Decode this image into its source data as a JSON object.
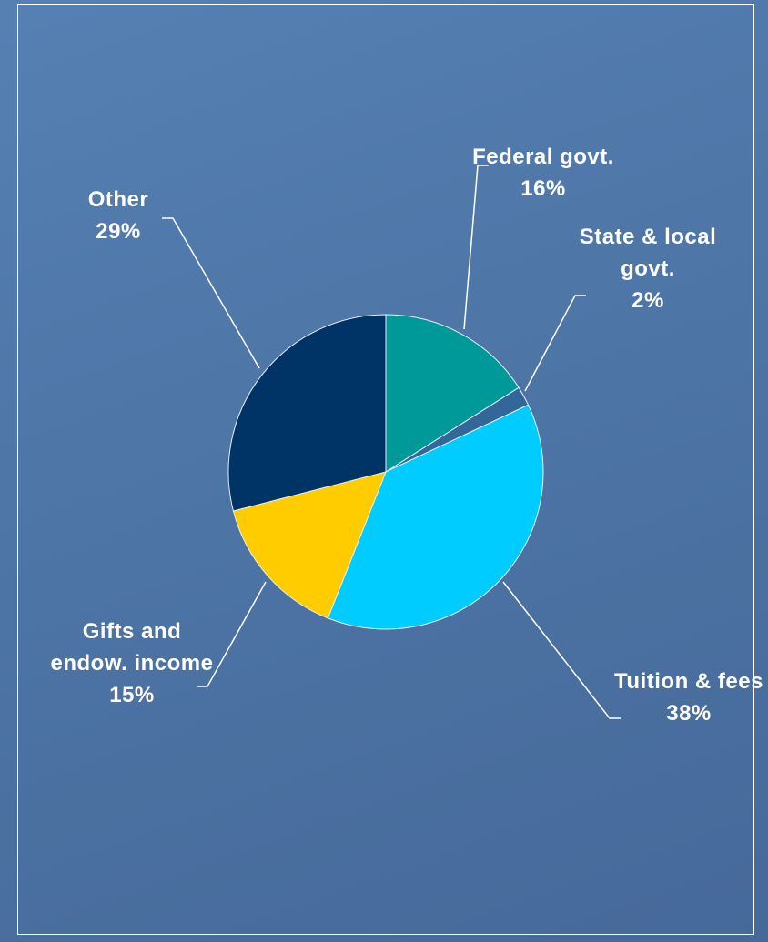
{
  "chart_data": {
    "type": "pie",
    "categories": [
      "Federal govt.",
      "State & local govt.",
      "Tuition & fees",
      "Gifts and endow. income",
      "Other"
    ],
    "values": [
      16,
      2,
      38,
      15,
      29
    ],
    "value_labels": [
      "16%",
      "2%",
      "38%",
      "15%",
      "29%"
    ],
    "colors": [
      "#009999",
      "#336699",
      "#00ccff",
      "#ffcc00",
      "#003366"
    ]
  }
}
